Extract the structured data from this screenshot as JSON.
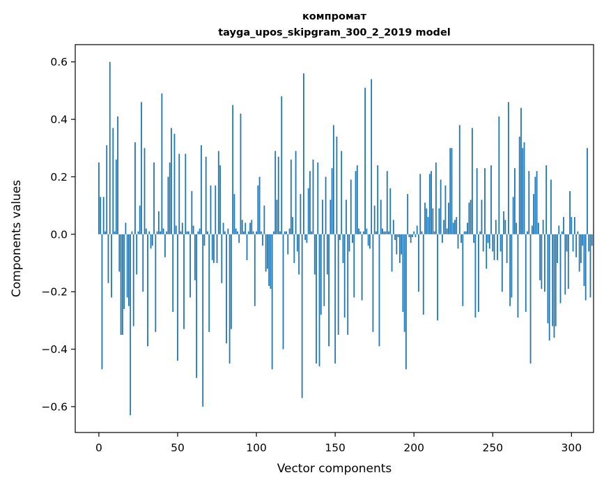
{
  "chart_data": {
    "type": "bar",
    "title": "компромат",
    "subtitle": "tayga_upos_skipgram_300_2_2019 model",
    "xlabel": "Vector components",
    "ylabel": "Components values",
    "xlim": [
      -15,
      314
    ],
    "ylim": [
      -0.69,
      0.66
    ],
    "xticks": [
      0,
      50,
      100,
      150,
      200,
      250,
      300
    ],
    "xtick_labels": [
      "0",
      "50",
      "100",
      "150",
      "200",
      "250",
      "300"
    ],
    "yticks": [
      -0.6,
      -0.4,
      -0.2,
      0.0,
      0.2,
      0.4,
      0.6
    ],
    "ytick_labels": [
      "−0.6",
      "−0.4",
      "−0.2",
      "0.0",
      "0.2",
      "0.4",
      "0.6"
    ],
    "grid": false,
    "bar_color": "#1f77b4",
    "values": [
      0.25,
      0.13,
      -0.47,
      0.13,
      0.01,
      0.31,
      -0.17,
      0.6,
      -0.22,
      0.37,
      0.01,
      0.26,
      0.41,
      -0.13,
      -0.35,
      -0.35,
      -0.26,
      0.04,
      -0.22,
      -0.25,
      -0.63,
      0.01,
      -0.32,
      0.32,
      -0.14,
      0.01,
      0.1,
      0.46,
      -0.2,
      0.3,
      0.02,
      -0.39,
      0.01,
      -0.05,
      -0.04,
      0.25,
      -0.34,
      0.01,
      0.08,
      0.01,
      0.49,
      0.02,
      -0.08,
      0.01,
      0.2,
      0.25,
      0.37,
      -0.27,
      0.35,
      0.03,
      -0.44,
      0.28,
      0.01,
      0.04,
      -0.33,
      0.28,
      0.01,
      0.01,
      -0.22,
      0.15,
      0.03,
      -0.16,
      -0.5,
      0.01,
      0.02,
      0.31,
      -0.6,
      -0.04,
      0.27,
      0.01,
      -0.34,
      0.17,
      -0.09,
      -0.1,
      0.17,
      -0.1,
      0.29,
      0.24,
      -0.17,
      0.04,
      0.01,
      -0.38,
      0.02,
      -0.45,
      -0.33,
      0.45,
      0.14,
      0.02,
      0.01,
      -0.03,
      0.42,
      0.05,
      0.01,
      0.04,
      -0.09,
      0.01,
      0.04,
      0.05,
      0.01,
      -0.25,
      0.01,
      0.17,
      0.2,
      0.01,
      -0.04,
      0.1,
      -0.13,
      -0.12,
      -0.18,
      -0.19,
      -0.47,
      0.01,
      0.29,
      0.12,
      0.27,
      0.01,
      0.48,
      -0.4,
      0.01,
      0.01,
      -0.07,
      0.02,
      0.26,
      0.06,
      -0.1,
      0.29,
      -0.06,
      -0.14,
      0.14,
      -0.57,
      0.56,
      -0.02,
      -0.03,
      0.16,
      0.22,
      0.01,
      0.26,
      -0.14,
      -0.45,
      0.25,
      -0.46,
      -0.28,
      0.12,
      -0.25,
      0.2,
      -0.14,
      -0.39,
      0.12,
      0.23,
      0.38,
      -0.45,
      0.34,
      -0.35,
      -0.02,
      0.29,
      -0.1,
      -0.29,
      0.12,
      -0.35,
      -0.06,
      0.19,
      -0.03,
      -0.22,
      0.22,
      0.24,
      0.02,
      0.01,
      -0.23,
      0.01,
      0.51,
      0.02,
      -0.04,
      -0.05,
      0.54,
      -0.34,
      0.1,
      0.01,
      0.24,
      -0.39,
      0.12,
      0.02,
      0.01,
      0.01,
      0.22,
      0.01,
      0.16,
      -0.13,
      0.05,
      -0.02,
      -0.07,
      -0.01,
      -0.1,
      -0.07,
      -0.27,
      -0.34,
      -0.47,
      0.14,
      -0.01,
      -0.03,
      -0.01,
      0.01,
      -0.01,
      0.03,
      -0.2,
      0.21,
      0.01,
      -0.28,
      0.11,
      0.09,
      0.06,
      0.21,
      0.22,
      0.09,
      0.01,
      0.25,
      -0.3,
      0.09,
      0.19,
      -0.03,
      0.05,
      0.17,
      0.02,
      0.11,
      0.3,
      0.3,
      0.04,
      0.05,
      0.06,
      -0.05,
      0.38,
      -0.03,
      -0.25,
      0.01,
      0.01,
      0.04,
      0.11,
      0.12,
      0.37,
      -0.03,
      -0.29,
      0.23,
      -0.27,
      0.01,
      0.12,
      -0.06,
      0.23,
      -0.12,
      -0.03,
      -0.05,
      0.24,
      -0.06,
      -0.09,
      0.05,
      -0.09,
      0.41,
      -0.06,
      -0.2,
      0.08,
      0.05,
      -0.1,
      0.46,
      -0.25,
      -0.22,
      0.13,
      0.23,
      0.04,
      -0.29,
      0.34,
      0.44,
      0.3,
      0.32,
      -0.27,
      0.01,
      0.22,
      -0.45,
      0.03,
      0.14,
      0.2,
      0.22,
      0.04,
      -0.16,
      -0.19,
      0.05,
      -0.2,
      0.24,
      -0.31,
      -0.37,
      0.19,
      -0.32,
      -0.36,
      -0.32,
      -0.1,
      0.03,
      -0.24,
      0.01,
      0.06,
      -0.21,
      -0.06,
      -0.19,
      0.15,
      0.06,
      -0.06,
      0.06,
      -0.08,
      0.01,
      -0.13,
      -0.1,
      -0.04,
      -0.18,
      -0.23,
      0.3,
      -0.06,
      -0.22,
      -0.04
    ]
  }
}
